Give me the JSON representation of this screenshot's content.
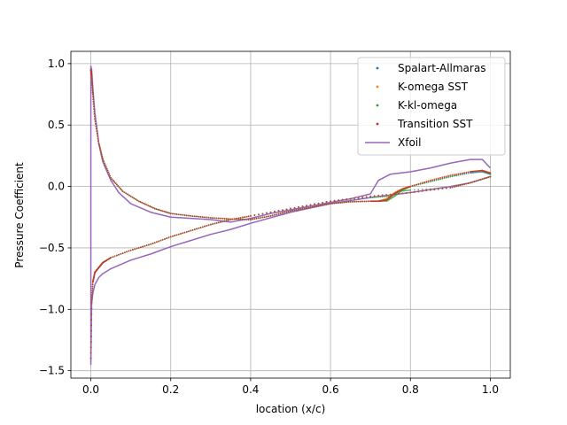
{
  "chart_data": {
    "type": "line",
    "title": "",
    "xlabel": "location (x/c)",
    "ylabel": "Pressure Coefficient",
    "xlim": [
      -0.05,
      1.05
    ],
    "ylim": [
      -1.56,
      1.1
    ],
    "x_ticks": [
      0.0,
      0.2,
      0.4,
      0.6,
      0.8,
      1.0
    ],
    "x_tick_labels": [
      "0.0",
      "0.2",
      "0.4",
      "0.6",
      "0.8",
      "1.0"
    ],
    "y_ticks": [
      -1.5,
      -1.0,
      -0.5,
      0.0,
      0.5,
      1.0
    ],
    "y_tick_labels": [
      "−1.5",
      "−1.0",
      "−0.5",
      "0.0",
      "0.5",
      "1.0"
    ],
    "grid": true,
    "legend_position": "top-right",
    "series": [
      {
        "name": "Spalart-Allmaras",
        "style": "points",
        "color": "#1f77b4",
        "upper": [
          [
            0.0,
            0.95
          ],
          [
            0.002,
            0.9
          ],
          [
            0.005,
            0.75
          ],
          [
            0.01,
            0.55
          ],
          [
            0.02,
            0.35
          ],
          [
            0.03,
            0.22
          ],
          [
            0.05,
            0.07
          ],
          [
            0.08,
            -0.04
          ],
          [
            0.12,
            -0.12
          ],
          [
            0.16,
            -0.18
          ],
          [
            0.2,
            -0.22
          ],
          [
            0.25,
            -0.24
          ],
          [
            0.3,
            -0.255
          ],
          [
            0.35,
            -0.265
          ],
          [
            0.4,
            -0.27
          ],
          [
            0.45,
            -0.24
          ],
          [
            0.5,
            -0.2
          ],
          [
            0.55,
            -0.17
          ],
          [
            0.6,
            -0.14
          ],
          [
            0.65,
            -0.125
          ],
          [
            0.7,
            -0.12
          ],
          [
            0.72,
            -0.12
          ],
          [
            0.74,
            -0.11
          ],
          [
            0.76,
            -0.06
          ],
          [
            0.78,
            -0.02
          ],
          [
            0.8,
            0.0
          ],
          [
            0.85,
            0.04
          ],
          [
            0.9,
            0.08
          ],
          [
            0.95,
            0.11
          ],
          [
            0.98,
            0.12
          ],
          [
            1.0,
            0.1
          ]
        ],
        "lower": [
          [
            0.0,
            -1.4
          ],
          [
            0.002,
            -0.95
          ],
          [
            0.005,
            -0.78
          ],
          [
            0.01,
            -0.7
          ],
          [
            0.02,
            -0.66
          ],
          [
            0.03,
            -0.62
          ],
          [
            0.05,
            -0.58
          ],
          [
            0.1,
            -0.52
          ],
          [
            0.15,
            -0.47
          ],
          [
            0.2,
            -0.41
          ],
          [
            0.25,
            -0.36
          ],
          [
            0.3,
            -0.31
          ],
          [
            0.35,
            -0.27
          ],
          [
            0.4,
            -0.24
          ],
          [
            0.5,
            -0.18
          ],
          [
            0.6,
            -0.12
          ],
          [
            0.7,
            -0.08
          ],
          [
            0.8,
            -0.05
          ],
          [
            0.9,
            -0.01
          ],
          [
            0.95,
            0.03
          ],
          [
            1.0,
            0.08
          ]
        ]
      },
      {
        "name": "K-omega SST",
        "style": "points",
        "color": "#ff7f0e",
        "upper": [
          [
            0.0,
            0.95
          ],
          [
            0.002,
            0.9
          ],
          [
            0.005,
            0.75
          ],
          [
            0.01,
            0.55
          ],
          [
            0.02,
            0.35
          ],
          [
            0.03,
            0.22
          ],
          [
            0.05,
            0.07
          ],
          [
            0.08,
            -0.04
          ],
          [
            0.12,
            -0.12
          ],
          [
            0.16,
            -0.18
          ],
          [
            0.2,
            -0.22
          ],
          [
            0.25,
            -0.24
          ],
          [
            0.3,
            -0.255
          ],
          [
            0.35,
            -0.265
          ],
          [
            0.4,
            -0.27
          ],
          [
            0.45,
            -0.24
          ],
          [
            0.5,
            -0.2
          ],
          [
            0.55,
            -0.17
          ],
          [
            0.6,
            -0.14
          ],
          [
            0.65,
            -0.125
          ],
          [
            0.7,
            -0.12
          ],
          [
            0.72,
            -0.12
          ],
          [
            0.74,
            -0.1
          ],
          [
            0.76,
            -0.05
          ],
          [
            0.78,
            -0.02
          ],
          [
            0.8,
            0.0
          ],
          [
            0.85,
            0.05
          ],
          [
            0.9,
            0.09
          ],
          [
            0.95,
            0.12
          ],
          [
            0.98,
            0.13
          ],
          [
            1.0,
            0.11
          ]
        ],
        "lower": [
          [
            0.0,
            -1.4
          ],
          [
            0.002,
            -0.95
          ],
          [
            0.005,
            -0.78
          ],
          [
            0.01,
            -0.7
          ],
          [
            0.02,
            -0.66
          ],
          [
            0.03,
            -0.62
          ],
          [
            0.05,
            -0.58
          ],
          [
            0.1,
            -0.52
          ],
          [
            0.15,
            -0.47
          ],
          [
            0.2,
            -0.41
          ],
          [
            0.25,
            -0.36
          ],
          [
            0.3,
            -0.31
          ],
          [
            0.35,
            -0.27
          ],
          [
            0.4,
            -0.24
          ],
          [
            0.5,
            -0.18
          ],
          [
            0.6,
            -0.12
          ],
          [
            0.7,
            -0.08
          ],
          [
            0.8,
            -0.05
          ],
          [
            0.9,
            -0.01
          ],
          [
            0.95,
            0.03
          ],
          [
            1.0,
            0.08
          ]
        ]
      },
      {
        "name": "K-kl-omega",
        "style": "points",
        "color": "#2ca02c",
        "upper": [
          [
            0.0,
            0.95
          ],
          [
            0.002,
            0.9
          ],
          [
            0.005,
            0.75
          ],
          [
            0.01,
            0.55
          ],
          [
            0.02,
            0.35
          ],
          [
            0.03,
            0.22
          ],
          [
            0.05,
            0.07
          ],
          [
            0.08,
            -0.04
          ],
          [
            0.12,
            -0.12
          ],
          [
            0.16,
            -0.18
          ],
          [
            0.2,
            -0.22
          ],
          [
            0.25,
            -0.24
          ],
          [
            0.3,
            -0.255
          ],
          [
            0.35,
            -0.265
          ],
          [
            0.4,
            -0.27
          ],
          [
            0.45,
            -0.24
          ],
          [
            0.5,
            -0.2
          ],
          [
            0.55,
            -0.17
          ],
          [
            0.6,
            -0.14
          ],
          [
            0.65,
            -0.125
          ],
          [
            0.7,
            -0.12
          ],
          [
            0.74,
            -0.12
          ],
          [
            0.76,
            -0.08
          ],
          [
            0.78,
            -0.03
          ],
          [
            0.8,
            0.0
          ],
          [
            0.85,
            0.04
          ],
          [
            0.9,
            0.08
          ],
          [
            0.95,
            0.12
          ],
          [
            0.98,
            0.13
          ],
          [
            1.0,
            0.1
          ]
        ],
        "lower": [
          [
            0.0,
            -1.4
          ],
          [
            0.002,
            -0.95
          ],
          [
            0.005,
            -0.78
          ],
          [
            0.01,
            -0.7
          ],
          [
            0.02,
            -0.66
          ],
          [
            0.03,
            -0.62
          ],
          [
            0.05,
            -0.58
          ],
          [
            0.1,
            -0.52
          ],
          [
            0.15,
            -0.47
          ],
          [
            0.2,
            -0.41
          ],
          [
            0.25,
            -0.36
          ],
          [
            0.3,
            -0.31
          ],
          [
            0.35,
            -0.27
          ],
          [
            0.4,
            -0.24
          ],
          [
            0.5,
            -0.18
          ],
          [
            0.6,
            -0.12
          ],
          [
            0.7,
            -0.09
          ],
          [
            0.75,
            -0.08
          ],
          [
            0.76,
            -0.06
          ],
          [
            0.77,
            -0.04
          ],
          [
            0.8,
            -0.03
          ],
          [
            0.9,
            -0.01
          ],
          [
            0.95,
            0.03
          ],
          [
            1.0,
            0.08
          ]
        ]
      },
      {
        "name": "Transition SST",
        "style": "points",
        "color": "#d62728",
        "upper": [
          [
            0.0,
            0.95
          ],
          [
            0.002,
            0.9
          ],
          [
            0.005,
            0.75
          ],
          [
            0.01,
            0.55
          ],
          [
            0.02,
            0.35
          ],
          [
            0.03,
            0.22
          ],
          [
            0.05,
            0.07
          ],
          [
            0.08,
            -0.04
          ],
          [
            0.12,
            -0.12
          ],
          [
            0.16,
            -0.18
          ],
          [
            0.2,
            -0.22
          ],
          [
            0.25,
            -0.24
          ],
          [
            0.3,
            -0.255
          ],
          [
            0.35,
            -0.265
          ],
          [
            0.4,
            -0.27
          ],
          [
            0.45,
            -0.24
          ],
          [
            0.5,
            -0.2
          ],
          [
            0.55,
            -0.17
          ],
          [
            0.6,
            -0.14
          ],
          [
            0.65,
            -0.125
          ],
          [
            0.7,
            -0.12
          ],
          [
            0.72,
            -0.12
          ],
          [
            0.74,
            -0.11
          ],
          [
            0.76,
            -0.06
          ],
          [
            0.78,
            -0.02
          ],
          [
            0.8,
            0.0
          ],
          [
            0.85,
            0.05
          ],
          [
            0.9,
            0.09
          ],
          [
            0.95,
            0.12
          ],
          [
            0.98,
            0.13
          ],
          [
            1.0,
            0.11
          ]
        ],
        "lower": [
          [
            0.0,
            -1.4
          ],
          [
            0.002,
            -0.95
          ],
          [
            0.005,
            -0.78
          ],
          [
            0.01,
            -0.7
          ],
          [
            0.02,
            -0.66
          ],
          [
            0.03,
            -0.62
          ],
          [
            0.05,
            -0.58
          ],
          [
            0.1,
            -0.52
          ],
          [
            0.15,
            -0.47
          ],
          [
            0.2,
            -0.41
          ],
          [
            0.25,
            -0.36
          ],
          [
            0.3,
            -0.31
          ],
          [
            0.35,
            -0.27
          ],
          [
            0.4,
            -0.24
          ],
          [
            0.5,
            -0.18
          ],
          [
            0.6,
            -0.12
          ],
          [
            0.7,
            -0.08
          ],
          [
            0.8,
            -0.05
          ],
          [
            0.9,
            -0.01
          ],
          [
            0.95,
            0.03
          ],
          [
            1.0,
            0.08
          ]
        ]
      },
      {
        "name": "Xfoil",
        "style": "line",
        "color": "#9467bd",
        "points": [
          [
            1.0,
            0.15
          ],
          [
            0.98,
            0.22
          ],
          [
            0.95,
            0.22
          ],
          [
            0.9,
            0.19
          ],
          [
            0.85,
            0.15
          ],
          [
            0.8,
            0.12
          ],
          [
            0.75,
            0.1
          ],
          [
            0.72,
            0.05
          ],
          [
            0.7,
            -0.06
          ],
          [
            0.65,
            -0.1
          ],
          [
            0.6,
            -0.13
          ],
          [
            0.55,
            -0.16
          ],
          [
            0.5,
            -0.19
          ],
          [
            0.45,
            -0.22
          ],
          [
            0.4,
            -0.26
          ],
          [
            0.35,
            -0.29
          ],
          [
            0.3,
            -0.27
          ],
          [
            0.25,
            -0.26
          ],
          [
            0.2,
            -0.25
          ],
          [
            0.15,
            -0.21
          ],
          [
            0.1,
            -0.14
          ],
          [
            0.07,
            -0.05
          ],
          [
            0.05,
            0.05
          ],
          [
            0.03,
            0.2
          ],
          [
            0.02,
            0.35
          ],
          [
            0.01,
            0.6
          ],
          [
            0.005,
            0.8
          ],
          [
            0.002,
            0.95
          ],
          [
            0.0,
            0.98
          ],
          [
            0.0,
            -1.45
          ],
          [
            0.002,
            -0.95
          ],
          [
            0.005,
            -0.87
          ],
          [
            0.01,
            -0.8
          ],
          [
            0.02,
            -0.74
          ],
          [
            0.03,
            -0.71
          ],
          [
            0.05,
            -0.67
          ],
          [
            0.1,
            -0.6
          ],
          [
            0.15,
            -0.55
          ],
          [
            0.2,
            -0.49
          ],
          [
            0.25,
            -0.44
          ],
          [
            0.3,
            -0.39
          ],
          [
            0.35,
            -0.35
          ],
          [
            0.4,
            -0.3
          ],
          [
            0.5,
            -0.21
          ],
          [
            0.6,
            -0.14
          ],
          [
            0.7,
            -0.09
          ],
          [
            0.8,
            -0.05
          ],
          [
            0.9,
            0.0
          ],
          [
            0.95,
            0.03
          ],
          [
            1.0,
            0.08
          ]
        ]
      }
    ]
  }
}
